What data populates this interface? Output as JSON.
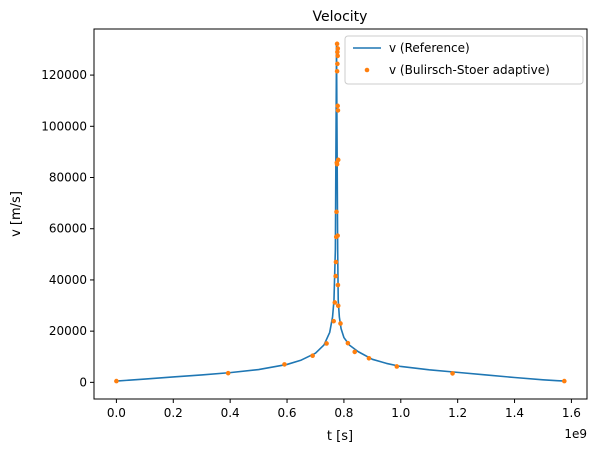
{
  "chart_data": {
    "type": "line",
    "title": "Velocity",
    "xlabel": "t [s]",
    "ylabel": "v [m/s]",
    "x_offset_label": "1e9",
    "xlim": [
      -78800000.0,
      1654800000.0
    ],
    "ylim": [
      -6500,
      138000
    ],
    "x_ticks": [
      0.0,
      200000000.0,
      400000000.0,
      600000000.0,
      800000000.0,
      1000000000.0,
      1200000000.0,
      1400000000.0,
      1600000000.0
    ],
    "x_tick_labels": [
      "0.0",
      "0.2",
      "0.4",
      "0.6",
      "0.8",
      "1.0",
      "1.2",
      "1.4",
      "1.6"
    ],
    "y_ticks": [
      0,
      20000,
      40000,
      60000,
      80000,
      100000,
      120000
    ],
    "y_tick_labels": [
      "0",
      "20000",
      "40000",
      "60000",
      "80000",
      "100000",
      "120000"
    ],
    "grid": false,
    "legend_position": "top-right",
    "colors": {
      "reference": "#1f77b4",
      "bulirsch_stoer": "#ff7f0e"
    },
    "series": [
      {
        "name": "v (Reference)",
        "kind": "line",
        "x": [
          0,
          50000000.0,
          100000000.0,
          200000000.0,
          300000000.0,
          400000000.0,
          500000000.0,
          600000000.0,
          650000000.0,
          700000000.0,
          730000000.0,
          750000000.0,
          760000000.0,
          765000000.0,
          770000000.0,
          774000000.0,
          778000000.0,
          780000000.0,
          784000000.0,
          790000000.0,
          800000000.0,
          820000000.0,
          850000000.0,
          900000000.0,
          950000000.0,
          1000000000.0,
          1100000000.0,
          1200000000.0,
          1300000000.0,
          1400000000.0,
          1500000000.0,
          1550000000.0,
          1578000000.0
        ],
        "y": [
          500,
          900,
          1300,
          2100,
          2900,
          3800,
          5000,
          7000,
          8700,
          11400,
          14600,
          19500,
          25500,
          32000,
          52000,
          132000,
          52000,
          32000,
          25500,
          21000,
          17500,
          14500,
          12000,
          9000,
          7400,
          6200,
          4900,
          3900,
          2900,
          1900,
          1000,
          650,
          500
        ]
      },
      {
        "name": "v (Bulirsch-Stoer adaptive)",
        "kind": "scatter",
        "x": [
          0.0,
          393000000.0,
          591000000.0,
          690000000.0,
          739000000.0,
          764000000.0,
          768000000.0,
          771000000.0,
          772000000.0,
          773000000.0,
          774000000.0,
          775000000.0,
          776000000.0,
          777000000.0,
          778000000.0,
          778500000.0,
          776000000.0,
          777000000.0,
          778000000.0,
          779000000.0,
          780000000.0,
          776000000.0,
          778000000.0,
          779000000.0,
          780000000.0,
          788000000.0,
          814000000.0,
          838000000.0,
          888000000.0,
          986000000.0,
          1182000000.0,
          1575000000.0
        ],
        "y": [
          500,
          3600,
          7000,
          10400,
          15200,
          23900,
          31200,
          41500,
          47000,
          56800,
          66600,
          85800,
          121500,
          124400,
          127500,
          130400,
          132200,
          129000,
          108000,
          106200,
          86900,
          85200,
          57300,
          38000,
          29900,
          23000,
          15300,
          11900,
          9400,
          6200,
          3500,
          500
        ]
      }
    ]
  }
}
